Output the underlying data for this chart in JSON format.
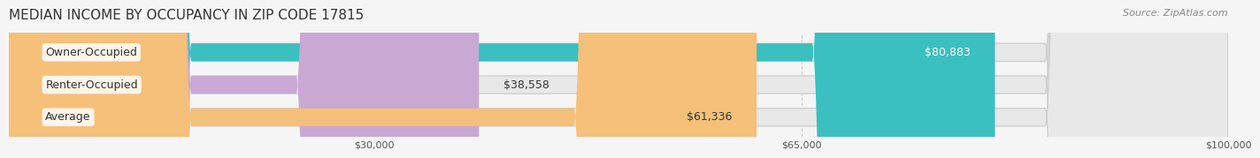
{
  "title": "MEDIAN INCOME BY OCCUPANCY IN ZIP CODE 17815",
  "source": "Source: ZipAtlas.com",
  "categories": [
    "Owner-Occupied",
    "Renter-Occupied",
    "Average"
  ],
  "values": [
    80883,
    38558,
    61336
  ],
  "bar_colors": [
    "#3bbfbf",
    "#c9a8d4",
    "#f5c07a"
  ],
  "label_colors": [
    "#ffffff",
    "#555555",
    "#555555"
  ],
  "value_labels": [
    "$80,883",
    "$38,558",
    "$61,336"
  ],
  "xlim": [
    0,
    100000
  ],
  "xticks": [
    30000,
    65000,
    100000
  ],
  "xtick_labels": [
    "$30,000",
    "$65,000",
    "$100,000"
  ],
  "background_color": "#f5f5f5",
  "bar_bg_color": "#e8e8e8",
  "title_fontsize": 11,
  "source_fontsize": 8,
  "label_fontsize": 9,
  "value_fontsize": 9
}
